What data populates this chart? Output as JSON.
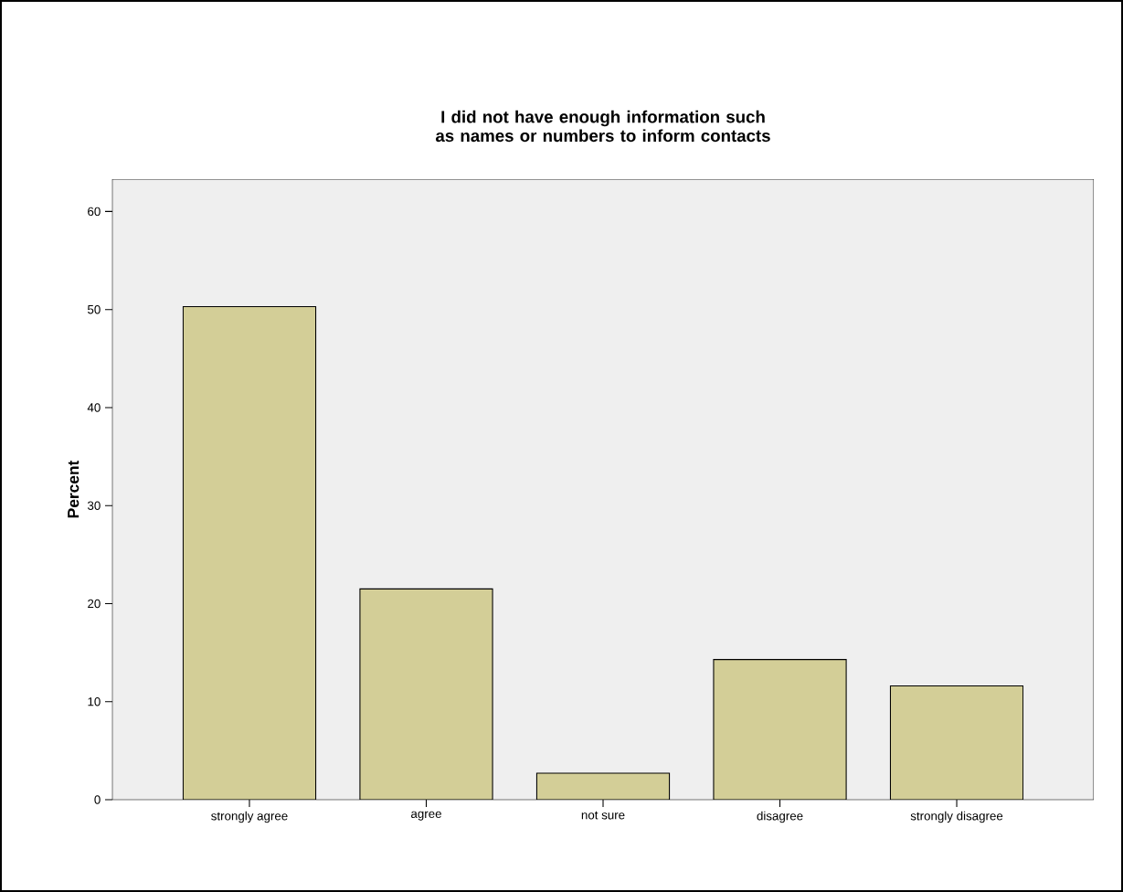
{
  "chart_data": {
    "type": "bar",
    "title": "I did not have enough information such as names or numbers to inform contacts",
    "ylabel": "Percent",
    "categories": [
      "strongly agree",
      "agree",
      "not sure",
      "disagree",
      "strongly disagree"
    ],
    "values": [
      50.3,
      21.5,
      2.7,
      14.3,
      11.6
    ],
    "color": "#d3ce97",
    "ylim": [
      0,
      63.3
    ],
    "yticks": [
      0,
      10,
      20,
      30,
      40,
      50,
      60
    ]
  }
}
